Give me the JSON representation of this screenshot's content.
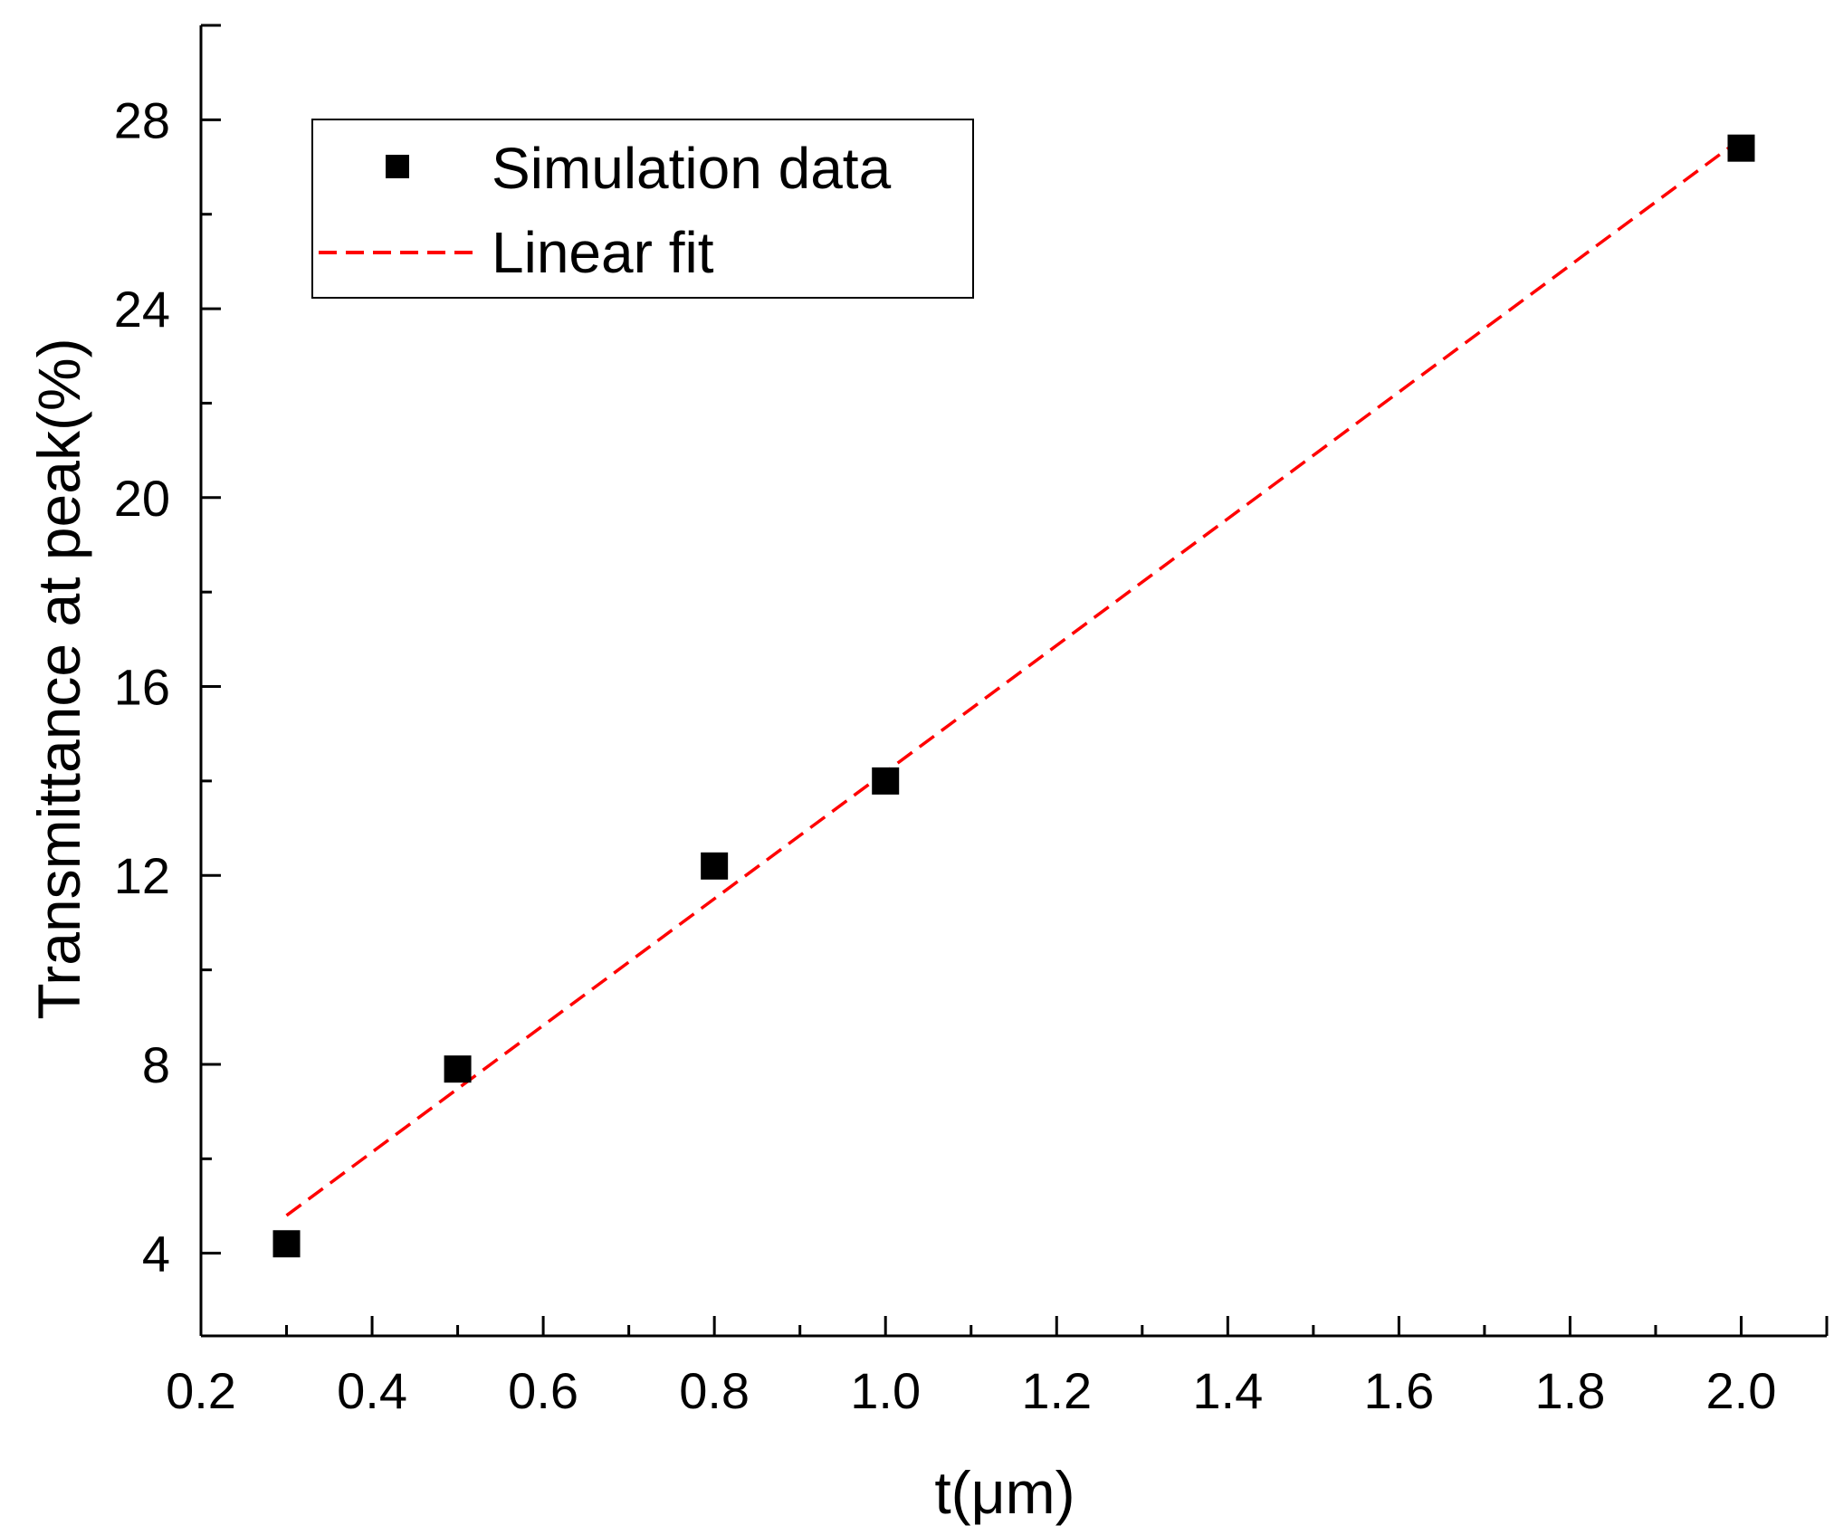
{
  "chart_data": {
    "type": "scatter",
    "title": "",
    "xlabel": "t(μm)",
    "ylabel": "Transmittance at peak(%)",
    "xlim": [
      0.2,
      2.1
    ],
    "ylim": [
      2.25,
      30
    ],
    "x_ticks": [
      0.2,
      0.4,
      0.6,
      0.8,
      1.0,
      1.2,
      1.4,
      1.6,
      1.8,
      2.0
    ],
    "x_tick_labels": [
      "0.2",
      "0.4",
      "0.6",
      "0.8",
      "1.0",
      "1.2",
      "1.4",
      "1.6",
      "1.8",
      "2.0"
    ],
    "y_ticks": [
      4,
      8,
      12,
      16,
      20,
      24,
      28
    ],
    "y_tick_labels": [
      "4",
      "8",
      "12",
      "16",
      "20",
      "24",
      "28"
    ],
    "grid": false,
    "legend_position": "top-left",
    "series": [
      {
        "name": "Simulation data",
        "kind": "scatter",
        "marker": "square",
        "color": "#000000",
        "x": [
          0.3,
          0.5,
          0.8,
          1.0,
          2.0
        ],
        "y": [
          4.2,
          7.9,
          12.2,
          14.0,
          27.4
        ]
      },
      {
        "name": "Linear fit",
        "kind": "line",
        "style": "dashed",
        "color": "#ff0000",
        "x": [
          0.3,
          2.0
        ],
        "y": [
          4.8,
          27.6
        ]
      }
    ]
  }
}
